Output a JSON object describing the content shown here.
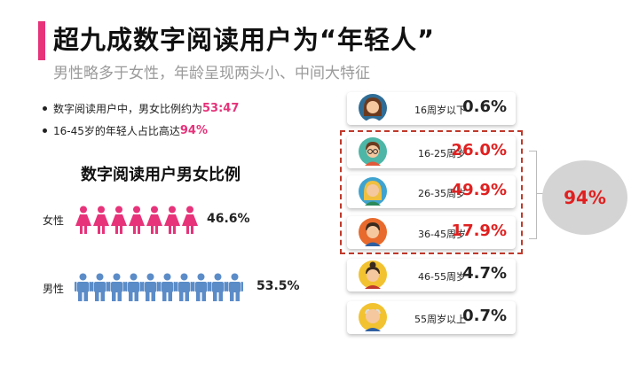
{
  "header": {
    "title": "超九成数字阅读用户为“年轻人”",
    "subtitle": "男性略多于女性，年龄呈现两头小、中间大特征"
  },
  "bullets": [
    {
      "text": "数字阅读用户中，男女比例约为",
      "highlight": "53:47"
    },
    {
      "text": "16-45岁的年轻人占比高达",
      "highlight": "94%"
    }
  ],
  "gender_chart": {
    "title": "数字阅读用户男女比例",
    "female_label": "女性",
    "female_pct": "46.6%",
    "male_label": "男性",
    "male_pct": "53.5%"
  },
  "age_cards": [
    {
      "age": "16周岁以下",
      "pct": "0.6%"
    },
    {
      "age": "16-25周岁",
      "pct": "26.0%"
    },
    {
      "age": "26-35周岁",
      "pct": "49.9%"
    },
    {
      "age": "36-45周岁",
      "pct": "17.9%"
    },
    {
      "age": "46-55周岁",
      "pct": "4.7%"
    },
    {
      "age": "55周岁以上",
      "pct": "0.7%"
    }
  ],
  "young_share": "94%",
  "colors": {
    "accent": "#e6337a",
    "female_icon": "#e6337a",
    "male_icon": "#5b8cc8",
    "highlight_red": "#e02020",
    "normal_pct": "#222222"
  },
  "chart_data": [
    {
      "type": "bar",
      "title": "数字阅读用户男女比例",
      "categories": [
        "女性",
        "男性"
      ],
      "values": [
        46.6,
        53.5
      ],
      "unit": "%",
      "icon_counts": [
        7,
        10
      ]
    },
    {
      "type": "table",
      "categories": [
        "16周岁以下",
        "16-25周岁",
        "26-35周岁",
        "36-45周岁",
        "46-55周岁",
        "55周岁以上"
      ],
      "values": [
        0.6,
        26.0,
        49.9,
        17.9,
        4.7,
        0.7
      ],
      "unit": "%",
      "highlighted": [
        "16-25周岁",
        "26-35周岁",
        "36-45周岁"
      ],
      "highlight_total": 94
    }
  ]
}
